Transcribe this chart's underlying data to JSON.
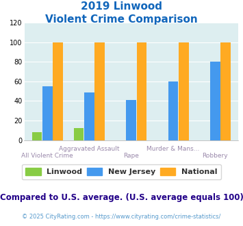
{
  "title_line1": "2019 Linwood",
  "title_line2": "Violent Crime Comparison",
  "categories": [
    "All Violent Crime",
    "Aggravated Assault",
    "Rape",
    "Murder & Mans...",
    "Robbery"
  ],
  "linwood": [
    8,
    12,
    0,
    0,
    0
  ],
  "new_jersey": [
    55,
    49,
    41,
    60,
    80
  ],
  "national": [
    100,
    100,
    100,
    100,
    100
  ],
  "color_linwood": "#88cc44",
  "color_nj": "#4499ee",
  "color_national": "#ffaa22",
  "ylim": [
    0,
    120
  ],
  "yticks": [
    0,
    20,
    40,
    60,
    80,
    100,
    120
  ],
  "legend_labels": [
    "Linwood",
    "New Jersey",
    "National"
  ],
  "footnote1": "Compared to U.S. average. (U.S. average equals 100)",
  "footnote2": "© 2025 CityRating.com - https://www.cityrating.com/crime-statistics/",
  "bg_color": "#ddeef0",
  "title_color": "#1166bb",
  "xlabel_color": "#9988aa",
  "footnote1_color": "#220088",
  "footnote2_color": "#5599cc",
  "footnote1_size": 8.5,
  "footnote2_size": 6.0,
  "bar_width": 0.24,
  "bar_gap": 0.01
}
